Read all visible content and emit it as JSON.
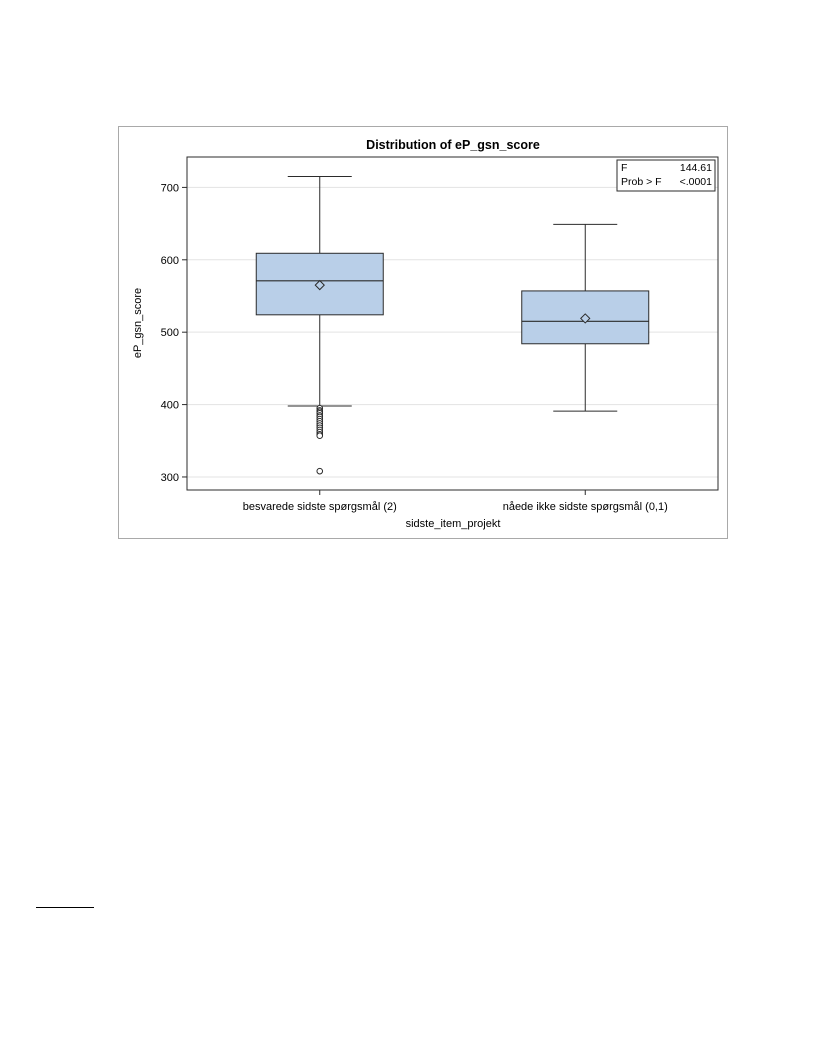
{
  "colors": {
    "box_fill": "#b9cfe8",
    "box_stroke": "#2b2b2b",
    "gridline": "#e3e3e3",
    "frame": "#a9a9a9",
    "text": "#000000"
  },
  "chart_data": {
    "type": "boxplot",
    "title": "Distribution of eP_gsn_score",
    "xlabel": "sidste_item_projekt",
    "ylabel": "eP_gsn_score",
    "ylim": [
      282,
      742
    ],
    "yticks": [
      300,
      400,
      500,
      600,
      700
    ],
    "grid": true,
    "categories": [
      "besvarede sidste spørgsmål (2)",
      "nåede ikke sidste spørgsmål (0,1)"
    ],
    "boxes": [
      {
        "category": "besvarede sidste spørgsmål (2)",
        "whisker_low": 398,
        "q1": 524,
        "median": 571,
        "q3": 609,
        "whisker_high": 715,
        "mean": 565,
        "outliers": [
          395,
          392,
          390,
          388,
          385,
          383,
          380,
          377,
          374,
          371,
          368,
          365,
          362,
          359,
          357,
          308
        ]
      },
      {
        "category": "nåede ikke sidste spørgsmål (0,1)",
        "whisker_low": 391,
        "q1": 484,
        "median": 515,
        "q3": 557,
        "whisker_high": 649,
        "mean": 519,
        "outliers": []
      }
    ],
    "inset_stats": {
      "rows": [
        {
          "label": "F",
          "value": "144.61"
        },
        {
          "label": "Prob > F",
          "value": "<.0001"
        }
      ],
      "position": "top-right"
    }
  }
}
